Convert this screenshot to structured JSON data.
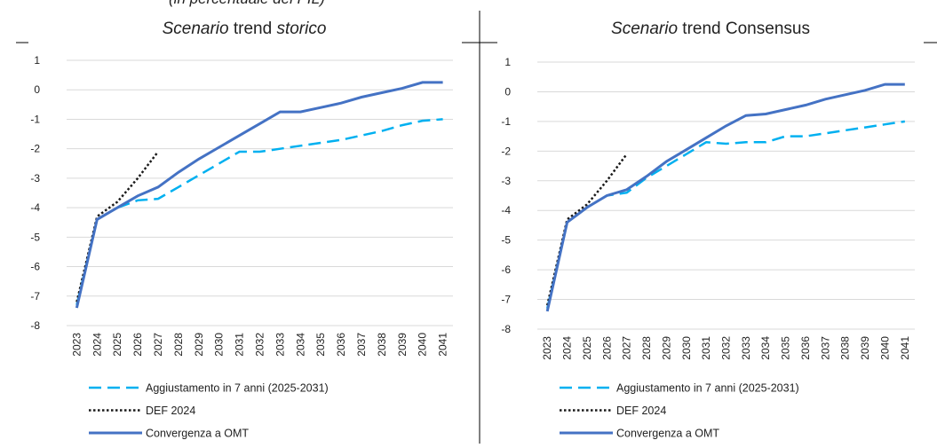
{
  "header": {
    "note": "(in percentuale del PIL)"
  },
  "chart_data": [
    {
      "type": "line",
      "title": [
        {
          "text": "Scenario",
          "italic": true
        },
        {
          "text": " trend ",
          "italic": false
        },
        {
          "text": "storico",
          "italic": true
        }
      ],
      "categories": [
        "2023",
        "2024",
        "2025",
        "2026",
        "2027",
        "2028",
        "2029",
        "2030",
        "2031",
        "2032",
        "2033",
        "2034",
        "2035",
        "2036",
        "2037",
        "2038",
        "2039",
        "2040",
        "2041"
      ],
      "ylim": [
        -8,
        1
      ],
      "yticks": [
        -8,
        -7,
        -6,
        -5,
        -4,
        -3,
        -2,
        -1,
        0,
        1
      ],
      "grid": true,
      "series": [
        {
          "name": "Aggiustamento in 7 anni  (2025-2031)",
          "color": "#00b0f0",
          "style": "dashed",
          "values": [
            -7.3,
            -4.4,
            -4.0,
            -3.75,
            -3.7,
            -3.3,
            -2.9,
            -2.5,
            -2.1,
            -2.1,
            -2.0,
            -1.9,
            -1.8,
            -1.7,
            -1.55,
            -1.4,
            -1.2,
            -1.05,
            -1.0
          ]
        },
        {
          "name": "DEF 2024",
          "color": "#1a1a1a",
          "style": "dotted",
          "values": [
            -7.2,
            -4.3,
            -3.8,
            -3.0,
            -2.1,
            null,
            null,
            null,
            null,
            null,
            null,
            null,
            null,
            null,
            null,
            null,
            null,
            null,
            null
          ]
        },
        {
          "name": "Convergenza a OMT",
          "color": "#4472c4",
          "style": "solid",
          "values": [
            -7.4,
            -4.4,
            -4.0,
            -3.6,
            -3.3,
            -2.8,
            -2.35,
            -1.95,
            -1.55,
            -1.15,
            -0.75,
            -0.75,
            -0.6,
            -0.45,
            -0.25,
            -0.1,
            0.05,
            0.25,
            0.25
          ]
        }
      ]
    },
    {
      "type": "line",
      "title": [
        {
          "text": "Scenario",
          "italic": true
        },
        {
          "text": " trend Consensus",
          "italic": false
        }
      ],
      "categories": [
        "2023",
        "2024",
        "2025",
        "2026",
        "2027",
        "2028",
        "2029",
        "2030",
        "2031",
        "2032",
        "2033",
        "2034",
        "2035",
        "2036",
        "2037",
        "2038",
        "2039",
        "2040",
        "2041"
      ],
      "ylim": [
        -8,
        1
      ],
      "yticks": [
        -8,
        -7,
        -6,
        -5,
        -4,
        -3,
        -2,
        -1,
        0,
        1
      ],
      "grid": true,
      "series": [
        {
          "name": "Aggiustamento in 7 anni  (2025-2031)",
          "color": "#00b0f0",
          "style": "dashed",
          "values": [
            -7.3,
            -4.4,
            -3.9,
            -3.5,
            -3.4,
            -2.9,
            -2.5,
            -2.1,
            -1.7,
            -1.75,
            -1.7,
            -1.7,
            -1.5,
            -1.5,
            -1.4,
            -1.3,
            -1.2,
            -1.1,
            -1.0
          ]
        },
        {
          "name": "DEF 2024",
          "color": "#1a1a1a",
          "style": "dotted",
          "values": [
            -7.2,
            -4.3,
            -3.8,
            -3.0,
            -2.1,
            null,
            null,
            null,
            null,
            null,
            null,
            null,
            null,
            null,
            null,
            null,
            null,
            null,
            null
          ]
        },
        {
          "name": "Convergenza a OMT",
          "color": "#4472c4",
          "style": "solid",
          "values": [
            -7.4,
            -4.4,
            -3.9,
            -3.5,
            -3.3,
            -2.85,
            -2.35,
            -1.95,
            -1.55,
            -1.15,
            -0.8,
            -0.75,
            -0.6,
            -0.45,
            -0.25,
            -0.1,
            0.05,
            0.25,
            0.25
          ]
        }
      ]
    }
  ]
}
